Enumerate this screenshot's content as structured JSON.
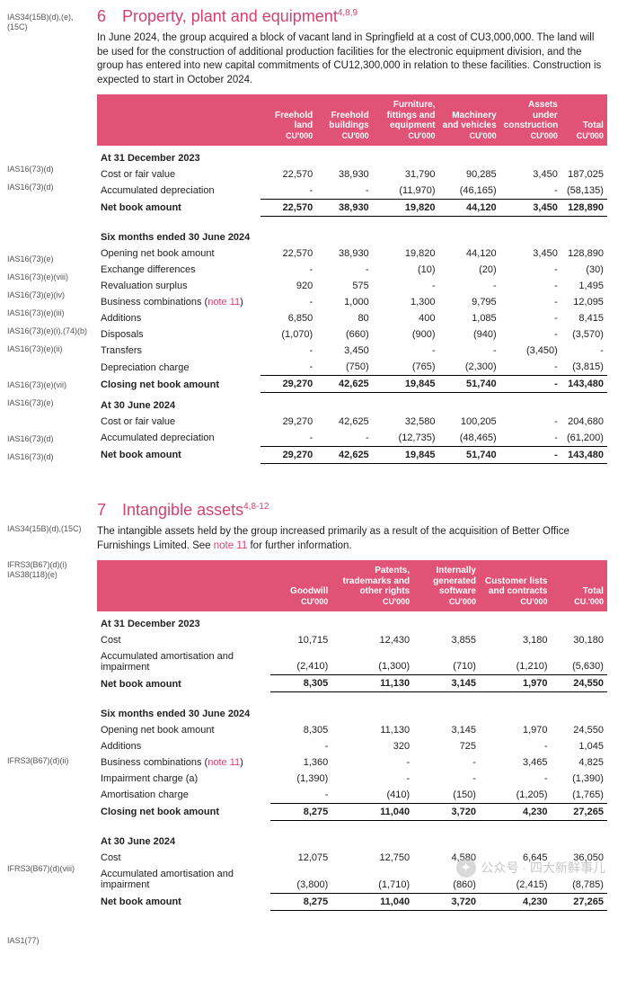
{
  "section6": {
    "refs_heading": "IAS34(15B)(d),(e),(15C)",
    "num": "6",
    "title": "Property, plant and equipment",
    "sup": "4,8,9",
    "para": "In June 2024, the group acquired a block of vacant land in Springfield at a cost of CU3,000,000. The land will be used for the construction of additional production facilities for the electronic equipment division, and the group has entered into new capital commitments of CU12,300,000 in relation to these facilities. Construction is expected to start in October 2024.",
    "headers": [
      {
        "l1": "Freehold",
        "l2": "land",
        "unit": "CU'000"
      },
      {
        "l1": "Freehold",
        "l2": "buildings",
        "unit": "CU'000"
      },
      {
        "l1": "Furniture,",
        "l2": "fittings and",
        "l3": "equipment",
        "unit": "CU'000"
      },
      {
        "l1": "Machinery",
        "l2": "and vehicles",
        "unit": "CU'000"
      },
      {
        "l1": "Assets under",
        "l2": "construction",
        "unit": "CU'000"
      },
      {
        "l1": "Total",
        "unit": "CU'000"
      }
    ],
    "row_refs": {
      "cost1": "IAS16(73)(d)",
      "accdep1": "IAS16(73)(d)",
      "open": "IAS16(73)(e)",
      "exch": "IAS16(73)(e)(viii)",
      "reval": "IAS16(73)(e)(iv)",
      "bizcomb": "IAS16(73)(e)(iii)",
      "add": "IAS16(73)(e)(i),(74)(b)",
      "disp": "IAS16(73)(e)(ii)",
      "depch": "IAS16(73)(e)(vii)",
      "close": "IAS16(73)(e)",
      "cost2": "IAS16(73)(d)",
      "accdep2": "IAS16(73)(d)"
    },
    "rows": {
      "h1": "At 31 December 2023",
      "cost1": {
        "label": "Cost or fair value",
        "v": [
          "22,570",
          "38,930",
          "31,790",
          "90,285",
          "3,450",
          "187,025"
        ]
      },
      "accdep1": {
        "label": "Accumulated depreciation",
        "v": [
          "-",
          "-",
          "(11,970)",
          "(46,165)",
          "-",
          "(58,135)"
        ]
      },
      "nba1": {
        "label": "Net book amount",
        "v": [
          "22,570",
          "38,930",
          "19,820",
          "44,120",
          "3,450",
          "128,890"
        ]
      },
      "h2": "Six months ended 30 June 2024",
      "open": {
        "label": "Opening net book amount",
        "v": [
          "22,570",
          "38,930",
          "19,820",
          "44,120",
          "3,450",
          "128,890"
        ]
      },
      "exch": {
        "label": "Exchange differences",
        "v": [
          "-",
          "-",
          "(10)",
          "(20)",
          "-",
          "(30)"
        ]
      },
      "reval": {
        "label": "Revaluation surplus",
        "v": [
          "920",
          "575",
          "-",
          "-",
          "-",
          "1,495"
        ]
      },
      "bizcomb": {
        "label": "Business combinations (",
        "note": "note 11",
        "label2": ")",
        "v": [
          "-",
          "1,000",
          "1,300",
          "9,795",
          "-",
          "12,095"
        ]
      },
      "add": {
        "label": "Additions",
        "v": [
          "6,850",
          "80",
          "400",
          "1,085",
          "-",
          "8,415"
        ]
      },
      "disp": {
        "label": "Disposals",
        "v": [
          "(1,070)",
          "(660)",
          "(900)",
          "(940)",
          "-",
          "(3,570)"
        ]
      },
      "trans": {
        "label": "Transfers",
        "v": [
          "-",
          "3,450",
          "-",
          "-",
          "(3,450)",
          "-"
        ]
      },
      "depch": {
        "label": "Depreciation charge",
        "v": [
          "-",
          "(750)",
          "(765)",
          "(2,300)",
          "-",
          "(3,815)"
        ]
      },
      "close": {
        "label": "Closing net book amount",
        "v": [
          "29,270",
          "42,625",
          "19,845",
          "51,740",
          "-",
          "143,480"
        ]
      },
      "h3": "At 30 June 2024",
      "cost2": {
        "label": "Cost or fair value",
        "v": [
          "29,270",
          "42,625",
          "32,580",
          "100,205",
          "-",
          "204,680"
        ]
      },
      "accdep2": {
        "label": "Accumulated depreciation",
        "v": [
          "-",
          "-",
          "(12,735)",
          "(48,465)",
          "-",
          "(61,200)"
        ]
      },
      "nba2": {
        "label": "Net book amount",
        "v": [
          "29,270",
          "42,625",
          "19,845",
          "51,740",
          "-",
          "143,480"
        ]
      }
    }
  },
  "section7": {
    "num": "7",
    "title": "Intangible assets",
    "sup": "4,8-12",
    "refs_heading": "IAS34(15B)(d),(15C)",
    "para_pre": "The intangible assets held by the group increased primarily as a result of the acquisition of Better Office Furnishings Limited. See ",
    "para_note": "note 11",
    "para_post": " for further information.",
    "refs_table": "IFRS3(B67)(d)(i)\nIAS38(118)(e)",
    "headers": [
      {
        "l1": "Goodwill",
        "unit": "CU'000"
      },
      {
        "l1": "Patents,",
        "l2": "trademarks and",
        "l3": "other rights",
        "unit": "CU'000"
      },
      {
        "l1": "Internally",
        "l2": "generated",
        "l3": "software",
        "unit": "CU'000"
      },
      {
        "l1": "Customer lists",
        "l2": "and contracts",
        "unit": "CU'000"
      },
      {
        "l1": "Total",
        "unit": "CU.'000"
      }
    ],
    "row_refs": {
      "add": "IFRS3(B67)(d)(ii)",
      "h3": "IFRS3(B67)(d)(viii)",
      "nba2": "IAS1(77)"
    },
    "rows": {
      "h1": "At 31 December 2023",
      "cost1": {
        "label": "Cost",
        "v": [
          "10,715",
          "12,430",
          "3,855",
          "3,180",
          "30,180"
        ]
      },
      "accam1": {
        "label": "Accumulated amortisation and impairment",
        "v": [
          "(2,410)",
          "(1,300)",
          "(710)",
          "(1,210)",
          "(5,630)"
        ]
      },
      "nba1": {
        "label": "Net book amount",
        "v": [
          "8,305",
          "11,130",
          "3,145",
          "1,970",
          "24,550"
        ]
      },
      "h2": "Six months ended 30 June 2024",
      "open": {
        "label": "Opening net book amount",
        "v": [
          "8,305",
          "11,130",
          "3,145",
          "1,970",
          "24,550"
        ]
      },
      "add": {
        "label": "Additions",
        "v": [
          "-",
          "320",
          "725",
          "-",
          "1,045"
        ]
      },
      "bizcomb": {
        "label": "Business combinations (",
        "note": "note 11",
        "label2": ")",
        "v": [
          "1,360",
          "-",
          "-",
          "3,465",
          "4,825"
        ]
      },
      "imp": {
        "label": "Impairment charge (a)",
        "v": [
          "(1,390)",
          "-",
          "-",
          "-",
          "(1,390)"
        ]
      },
      "amort": {
        "label": "Amortisation charge",
        "v": [
          "-",
          "(410)",
          "(150)",
          "(1,205)",
          "(1,765)"
        ]
      },
      "close": {
        "label": "Closing net book amount",
        "v": [
          "8,275",
          "11,040",
          "3,720",
          "4,230",
          "27,265"
        ]
      },
      "h3": "At 30 June 2024",
      "cost2": {
        "label": "Cost",
        "v": [
          "12,075",
          "12,750",
          "4,580",
          "6,645",
          "36,050"
        ]
      },
      "accam2": {
        "label": "Accumulated amortisation and impairment",
        "v": [
          "(3,800)",
          "(1,710)",
          "(860)",
          "(2,415)",
          "(8,785)"
        ]
      },
      "nba2": {
        "label": "Net book amount",
        "v": [
          "8,275",
          "11,040",
          "3,720",
          "4,230",
          "27,265"
        ]
      }
    }
  },
  "watermark": {
    "label": "公众号 · 四大新鲜事儿"
  }
}
